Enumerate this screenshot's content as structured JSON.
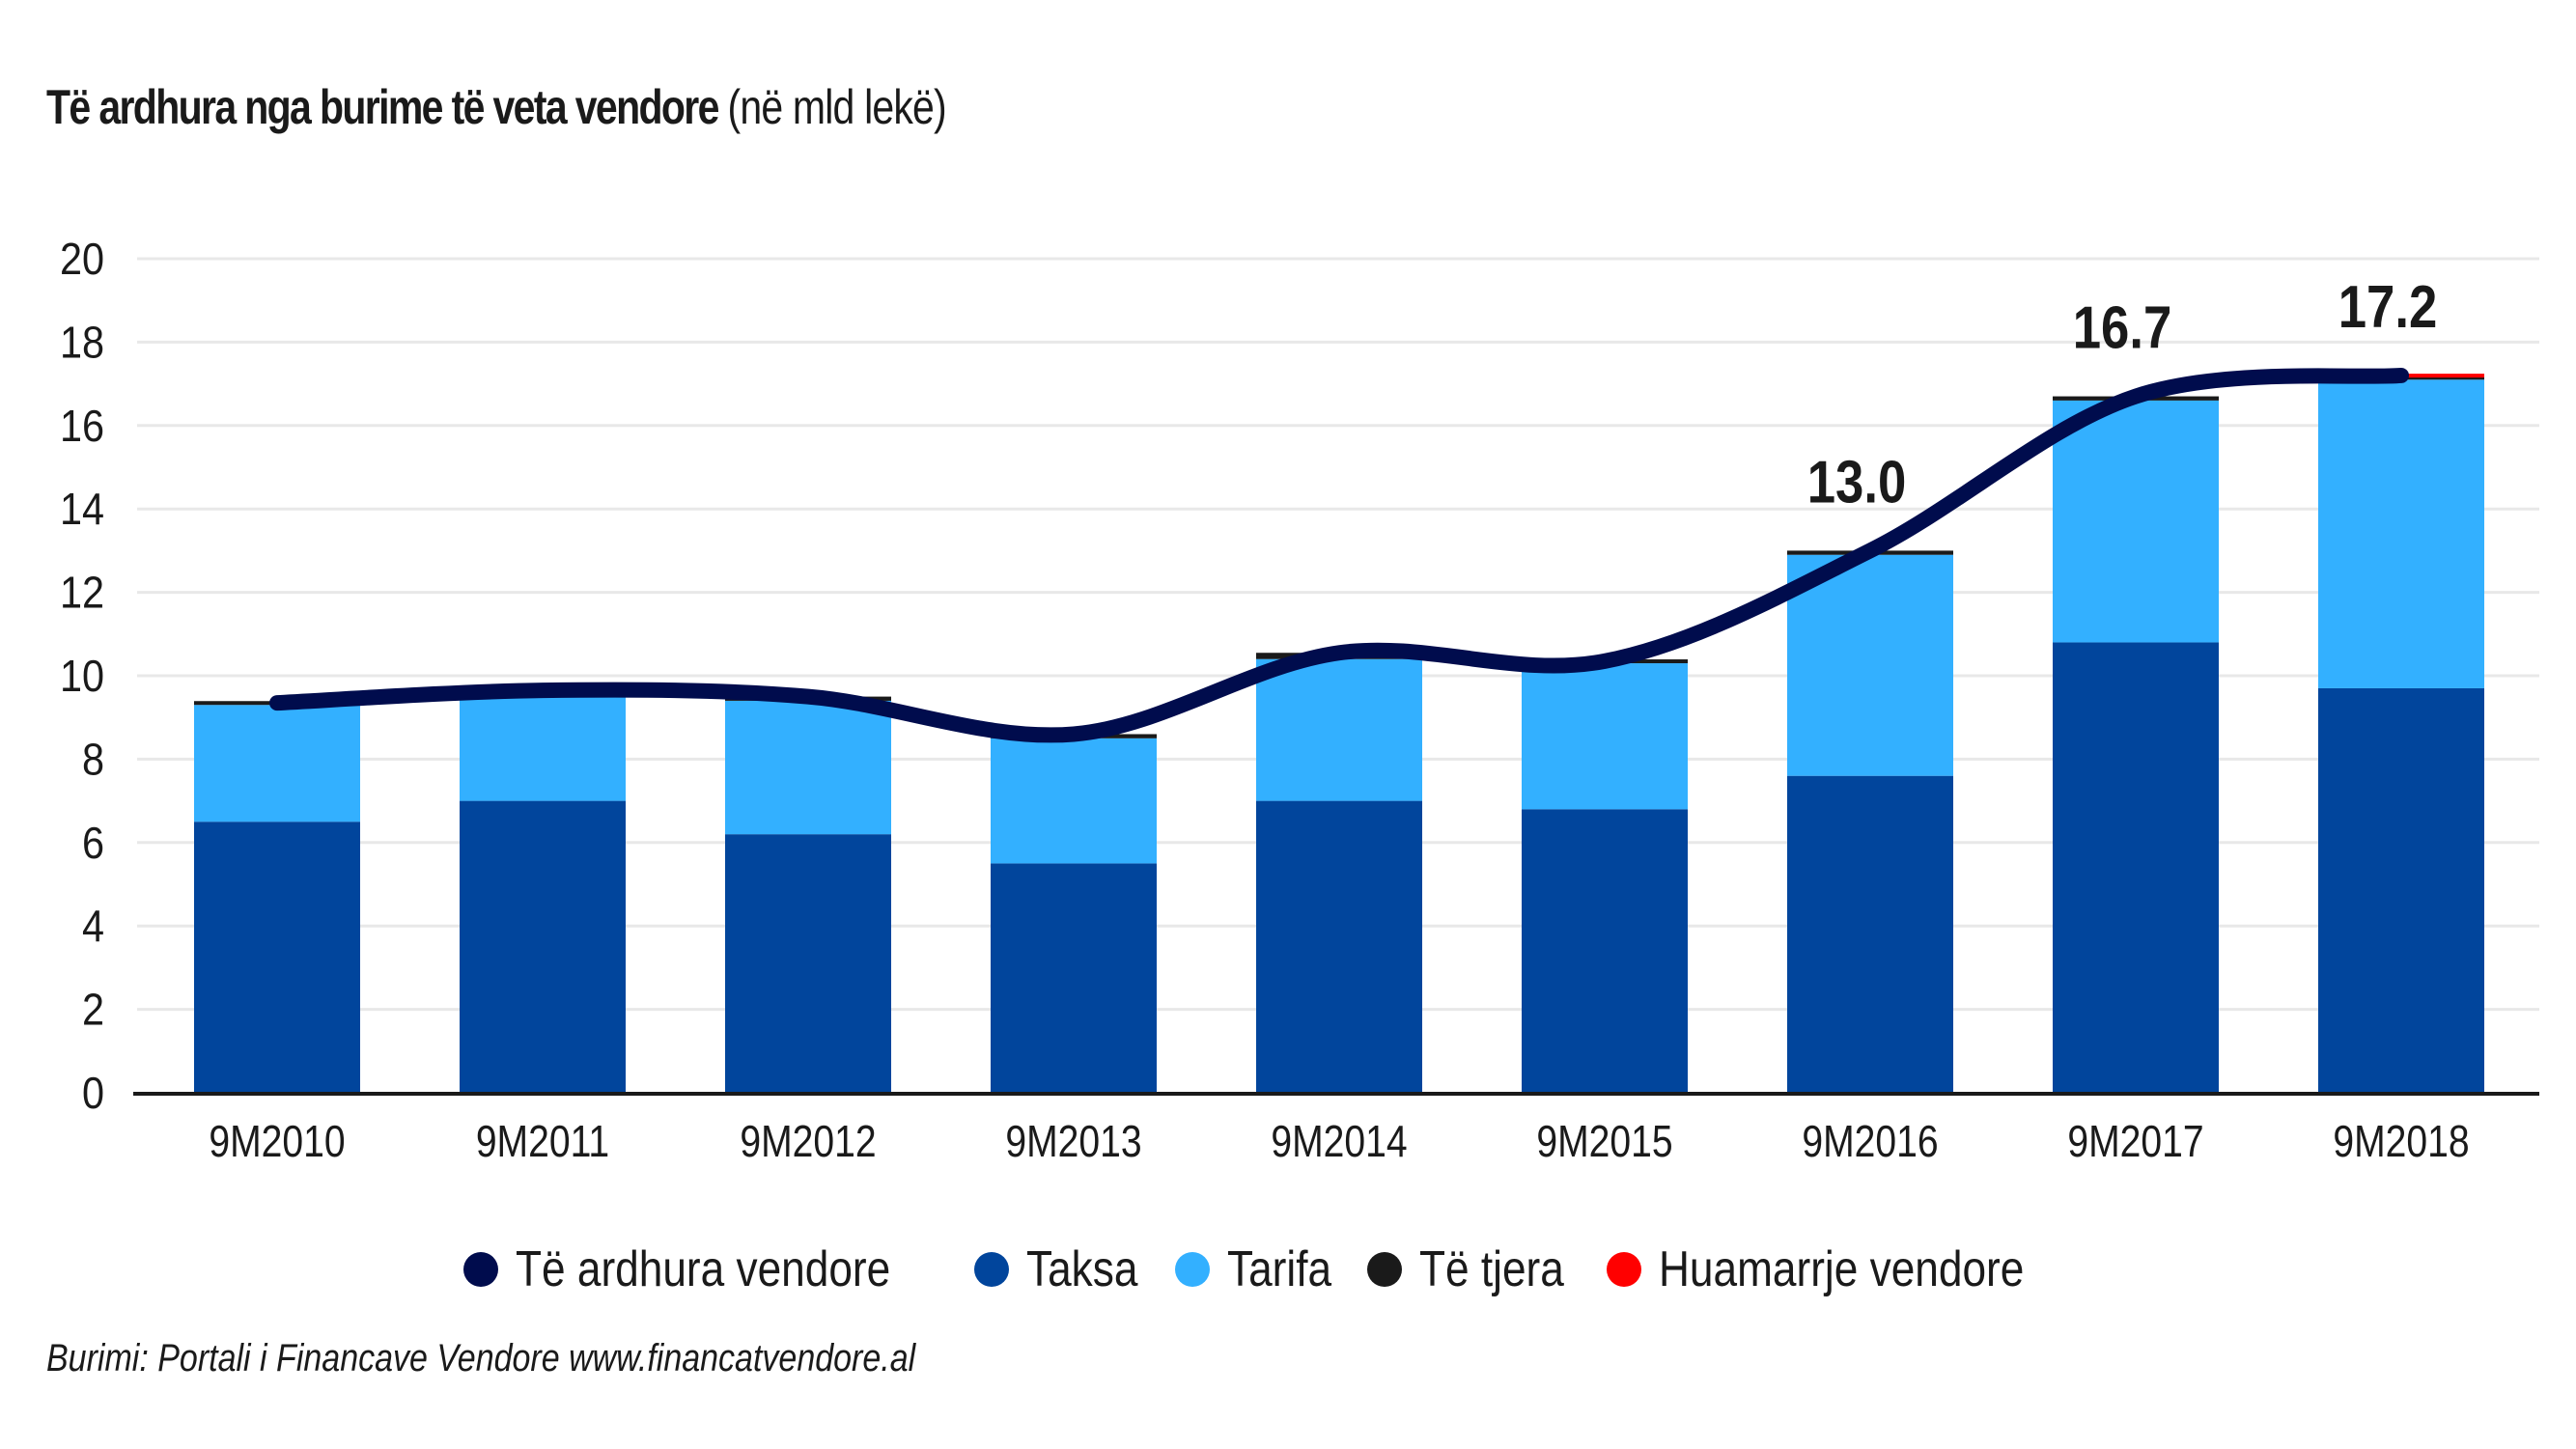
{
  "title": {
    "main": "Të ardhura nga burime të veta vendore",
    "unit": "(në mld lekë)"
  },
  "colors": {
    "line": "#000c4d",
    "taksa": "#01459c",
    "tarifa": "#33b0ff",
    "te_tjera": "#1a1a1a",
    "huamarrje": "#ff0000",
    "grid": "#e8e8e8",
    "axis": "#1a1a1a"
  },
  "legend": [
    {
      "label": "Të ardhura vendore",
      "color": "#000c4d"
    },
    {
      "label": "Taksa",
      "color": "#01459c"
    },
    {
      "label": "Tarifa",
      "color": "#33b0ff"
    },
    {
      "label": "Të tjera",
      "color": "#1a1a1a"
    },
    {
      "label": "Huamarrje vendore",
      "color": "#ff0000"
    }
  ],
  "source": "Burimi: Portali i Financave Vendore www.financatvendore.al",
  "chart_data": {
    "type": "bar",
    "stacked": true,
    "title": "Të ardhura nga burime të veta vendore (në mld lekë)",
    "xlabel": "",
    "ylabel": "",
    "ylim": [
      0,
      20
    ],
    "yticks": [
      0,
      2,
      4,
      6,
      8,
      10,
      12,
      14,
      16,
      18,
      20
    ],
    "grid": true,
    "legend_position": "bottom",
    "categories": [
      "9M2010",
      "9M2011",
      "9M2012",
      "9M2013",
      "9M2014",
      "9M2015",
      "9M2016",
      "9M2017",
      "9M2018"
    ],
    "series": [
      {
        "name": "Taksa",
        "type": "bar",
        "values": [
          6.5,
          7.0,
          6.2,
          5.5,
          7.0,
          6.8,
          7.6,
          10.8,
          9.7
        ]
      },
      {
        "name": "Tarifa",
        "type": "bar",
        "values": [
          2.8,
          2.6,
          3.2,
          3.0,
          3.4,
          3.5,
          5.3,
          5.8,
          7.4
        ]
      },
      {
        "name": "Të tjera",
        "type": "bar",
        "values": [
          0.05,
          0.05,
          0.1,
          0.1,
          0.15,
          0.07,
          0.1,
          0.1,
          0.05
        ]
      },
      {
        "name": "Huamarrje vendore",
        "type": "bar",
        "values": [
          0,
          0,
          0,
          0,
          0,
          0,
          0,
          0,
          0.05
        ]
      },
      {
        "name": "Të ardhura vendore",
        "type": "line",
        "values": [
          9.35,
          9.65,
          9.5,
          8.6,
          10.55,
          10.35,
          13.0,
          16.7,
          17.2
        ]
      }
    ],
    "data_labels": [
      {
        "category": "9M2016",
        "text": "13.0"
      },
      {
        "category": "9M2017",
        "text": "16.7"
      },
      {
        "category": "9M2018",
        "text": "17.2"
      }
    ]
  }
}
